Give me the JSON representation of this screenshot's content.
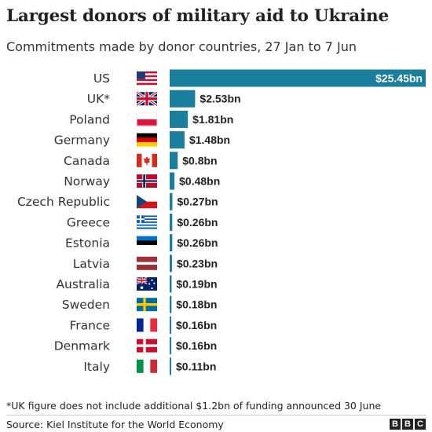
{
  "title": "Largest donors of military aid to Ukraine",
  "subtitle": "Commitments made by donor countries, 27 Jan to 7 Jun",
  "footnote": "*UK figure does not include additional $1.2bn of funding announced 30 June",
  "source": "Source: Kiel Institute for the World Economy",
  "logo": [
    "B",
    "B",
    "C"
  ],
  "colors": {
    "bar": "#1a7f9c",
    "text": "#222222",
    "value_on_bar": "#ffffff"
  },
  "chart_data": {
    "type": "bar",
    "orientation": "horizontal",
    "categories": [
      "US",
      "UK*",
      "Poland",
      "Germany",
      "Canada",
      "Norway",
      "Czech Republic",
      "Greece",
      "Estonia",
      "Latvia",
      "Australia",
      "Sweden",
      "France",
      "Denmark",
      "Italy"
    ],
    "values": [
      25.45,
      2.53,
      1.81,
      1.48,
      0.8,
      0.48,
      0.27,
      0.26,
      0.26,
      0.23,
      0.19,
      0.18,
      0.16,
      0.16,
      0.11
    ],
    "value_labels": [
      "$25.45bn",
      "$2.53bn",
      "$1.81bn",
      "$1.48bn",
      "$0.8bn",
      "$0.48bn",
      "$0.27bn",
      "$0.26bn",
      "$0.26bn",
      "$0.23bn",
      "$0.19bn",
      "$0.18bn",
      "$0.16bn",
      "$0.16bn",
      "$0.11bn"
    ],
    "flags": [
      "us-flag-icon",
      "uk-flag-icon",
      "poland-flag-icon",
      "germany-flag-icon",
      "canada-flag-icon",
      "norway-flag-icon",
      "czech-republic-flag-icon",
      "greece-flag-icon",
      "estonia-flag-icon",
      "latvia-flag-icon",
      "australia-flag-icon",
      "sweden-flag-icon",
      "france-flag-icon",
      "denmark-flag-icon",
      "italy-flag-icon"
    ],
    "xlim": [
      0,
      25.45
    ],
    "grid": false,
    "legend": "none"
  }
}
